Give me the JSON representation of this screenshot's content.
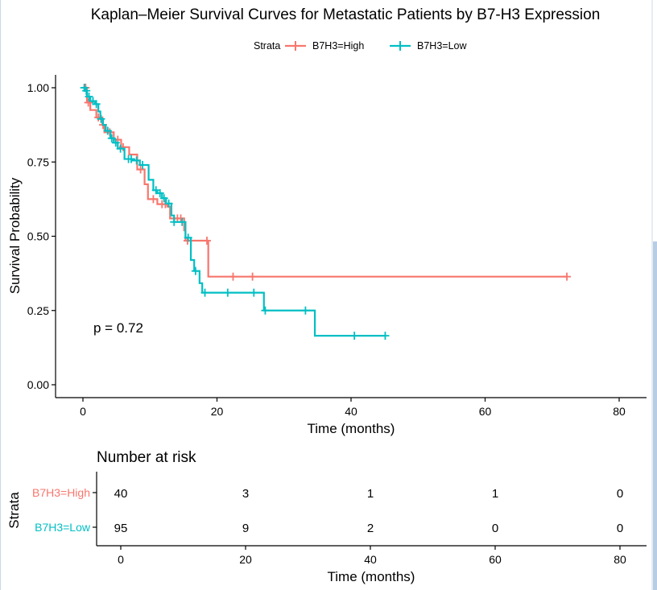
{
  "chart_data": {
    "type": "line",
    "title": "Kaplan–Meier Survival Curves for Metastatic Patients by B7-H3 Expression",
    "xlabel": "Time (months)",
    "ylabel": "Survival Probability",
    "xlim": [
      0,
      80
    ],
    "ylim": [
      0,
      1
    ],
    "xticks": [
      "0",
      "20",
      "40",
      "60",
      "80"
    ],
    "yticks": [
      "0.00",
      "0.25",
      "0.50",
      "0.75",
      "1.00"
    ],
    "legend_title": "Strata",
    "legend_position": "top",
    "pvalue_label": "p = 0.72",
    "series": [
      {
        "name": "B7H3=High",
        "color": "#F8766D",
        "steps": [
          [
            0,
            1.0
          ],
          [
            0.6,
            0.95
          ],
          [
            1.1,
            0.925
          ],
          [
            2.0,
            0.9
          ],
          [
            2.9,
            0.875
          ],
          [
            3.2,
            0.85
          ],
          [
            4.6,
            0.825
          ],
          [
            5.7,
            0.8
          ],
          [
            6.9,
            0.775
          ],
          [
            8.1,
            0.725
          ],
          [
            9.2,
            0.675
          ],
          [
            9.7,
            0.625
          ],
          [
            11.1,
            0.608
          ],
          [
            12.6,
            0.6
          ],
          [
            13.0,
            0.56
          ],
          [
            15.1,
            0.52
          ],
          [
            15.3,
            0.485
          ],
          [
            18.7,
            0.364
          ]
        ],
        "censor_times": [
          0.4,
          0.8,
          2.3,
          3.0,
          4.0,
          5.2,
          6.0,
          8.6,
          10.5,
          11.8,
          12.3,
          14.1,
          14.6,
          15.6,
          18.5,
          22.4,
          25.3,
          72.2
        ],
        "end_time": 72.2
      },
      {
        "name": "B7H3=Low",
        "color": "#00BFC4",
        "steps": [
          [
            0,
            1.0
          ],
          [
            0.3,
            0.99
          ],
          [
            0.6,
            0.97
          ],
          [
            1.1,
            0.955
          ],
          [
            1.8,
            0.945
          ],
          [
            2.3,
            0.92
          ],
          [
            2.6,
            0.895
          ],
          [
            3.0,
            0.875
          ],
          [
            3.4,
            0.855
          ],
          [
            4.1,
            0.83
          ],
          [
            4.6,
            0.815
          ],
          [
            5.2,
            0.795
          ],
          [
            6.2,
            0.76
          ],
          [
            7.4,
            0.755
          ],
          [
            8.5,
            0.74
          ],
          [
            9.8,
            0.69
          ],
          [
            10.5,
            0.655
          ],
          [
            11.1,
            0.645
          ],
          [
            11.8,
            0.628
          ],
          [
            12.4,
            0.61
          ],
          [
            13.2,
            0.57
          ],
          [
            13.6,
            0.548
          ],
          [
            15.3,
            0.495
          ],
          [
            16.1,
            0.42
          ],
          [
            16.6,
            0.383
          ],
          [
            17.4,
            0.342
          ],
          [
            17.8,
            0.31
          ],
          [
            27.0,
            0.25
          ],
          [
            34.6,
            0.165
          ]
        ],
        "censor_times": [
          0.2,
          0.5,
          0.9,
          1.5,
          2.0,
          2.7,
          3.7,
          4.3,
          4.9,
          5.6,
          6.8,
          7.2,
          8.0,
          8.9,
          10.9,
          11.5,
          12.1,
          12.8,
          13.6,
          14.8,
          15.7,
          16.8,
          18.2,
          21.6,
          25.5,
          27.2,
          33.2,
          40.5,
          45.1
        ],
        "end_time": 45.1
      }
    ],
    "risk_table": {
      "title": "Number at risk",
      "ylabel": "Strata",
      "xlabel": "Time (months)",
      "times": [
        0,
        20,
        40,
        60,
        80
      ],
      "rows": [
        {
          "name": "B7H3=High",
          "color": "#F8766D",
          "counts": [
            "40",
            "3",
            "1",
            "1",
            "0"
          ]
        },
        {
          "name": "B7H3=Low",
          "color": "#00BFC4",
          "counts": [
            "95",
            "9",
            "2",
            "0",
            "0"
          ]
        }
      ]
    }
  }
}
